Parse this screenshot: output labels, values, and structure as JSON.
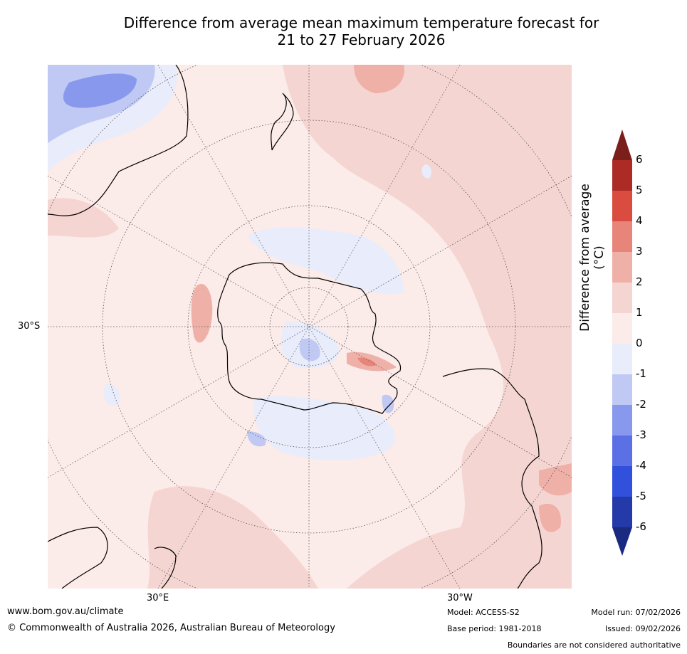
{
  "title": {
    "line1": "Difference from average mean maximum temperature forecast for",
    "line2": "21 to 27 February 2026"
  },
  "map": {
    "projection": "south-polar",
    "axis_labels": {
      "left": "30°S",
      "bottom_left": "30°E",
      "bottom_right": "30°W"
    },
    "landmasses": [
      "Antarctica",
      "Australia",
      "New Zealand",
      "South America",
      "Africa",
      "Madagascar"
    ]
  },
  "colorbar": {
    "label": "Difference from average (°C)",
    "ticks": [
      "6",
      "5",
      "4",
      "3",
      "2",
      "1",
      "0",
      "-1",
      "-2",
      "-3",
      "-4",
      "-5",
      "-6"
    ],
    "bins": [
      {
        "range": ">6",
        "color": "#7a1f1a"
      },
      {
        "range": "5 to 6",
        "color": "#ac2b25"
      },
      {
        "range": "4 to 5",
        "color": "#d94c3f"
      },
      {
        "range": "3 to 4",
        "color": "#e8857a"
      },
      {
        "range": "2 to 3",
        "color": "#efb0a8"
      },
      {
        "range": "1 to 2",
        "color": "#f5d5d1"
      },
      {
        "range": "0 to 1",
        "color": "#fbebe9"
      },
      {
        "range": "-1 to 0",
        "color": "#e8ecfb"
      },
      {
        "range": "-2 to -1",
        "color": "#c0c8f4"
      },
      {
        "range": "-3 to -2",
        "color": "#8898ec"
      },
      {
        "range": "-4 to -3",
        "color": "#5a70e4"
      },
      {
        "range": "-5 to -4",
        "color": "#3150dc"
      },
      {
        "range": "-6 to -5",
        "color": "#233aa8"
      },
      {
        "range": "<-6",
        "color": "#1a2a80"
      }
    ]
  },
  "footer": {
    "website": "www.bom.gov.au/climate",
    "copyright": "© Commonwealth of Australia 2026, Australian Bureau of Meteorology",
    "model": "Model: ACCESS-S2",
    "base_period": "Base period: 1981-2018",
    "model_run": "Model run: 07/02/2026",
    "issued": "Issued: 09/02/2026",
    "disclaimer": "Boundaries are not considered authoritative"
  }
}
